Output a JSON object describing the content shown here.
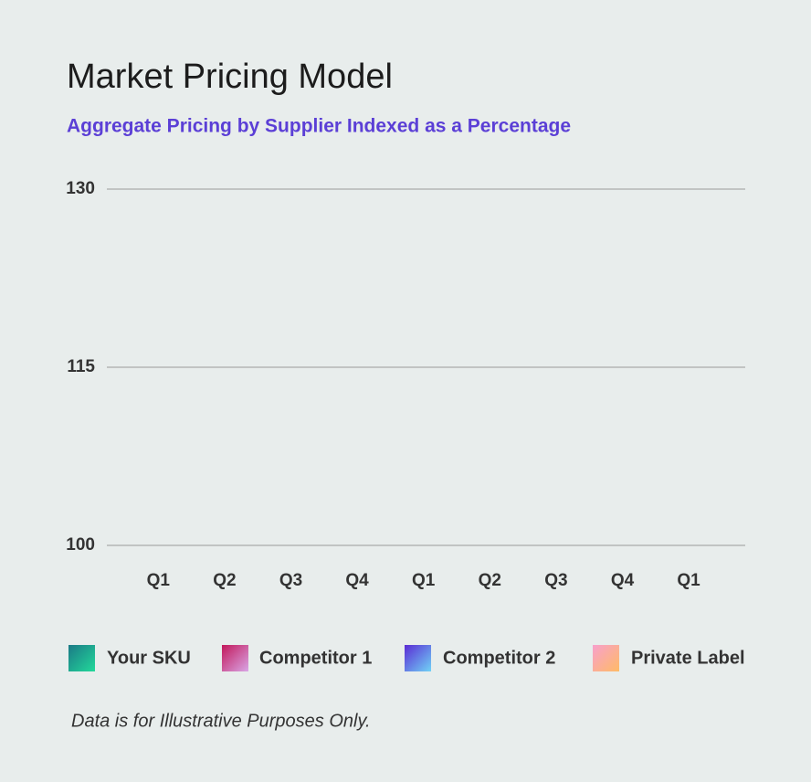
{
  "chart_data": {
    "type": "line",
    "title": "Market Pricing Model",
    "subtitle": "Aggregate Pricing by Supplier Indexed as a Percentage",
    "categories": [
      "Q1",
      "Q2",
      "Q3",
      "Q4",
      "Q1",
      "Q2",
      "Q3",
      "Q4",
      "Q1"
    ],
    "ylim": [
      100,
      130
    ],
    "yticks": [
      100,
      115,
      130
    ],
    "grid": true,
    "series": [
      {
        "name": "Your SKU",
        "color": [
          "#1b7a86",
          "#22d99a"
        ]
      },
      {
        "name": "Competitor 1",
        "color": [
          "#c2185b",
          "#d9a6e6"
        ]
      },
      {
        "name": "Competitor 2",
        "color": [
          "#5a2bd4",
          "#70d2f6"
        ]
      },
      {
        "name": "Private Label",
        "color": [
          "#f7a0cc",
          "#ffbb66"
        ]
      }
    ],
    "note": "Data is for Illustrative Purposes Only."
  }
}
